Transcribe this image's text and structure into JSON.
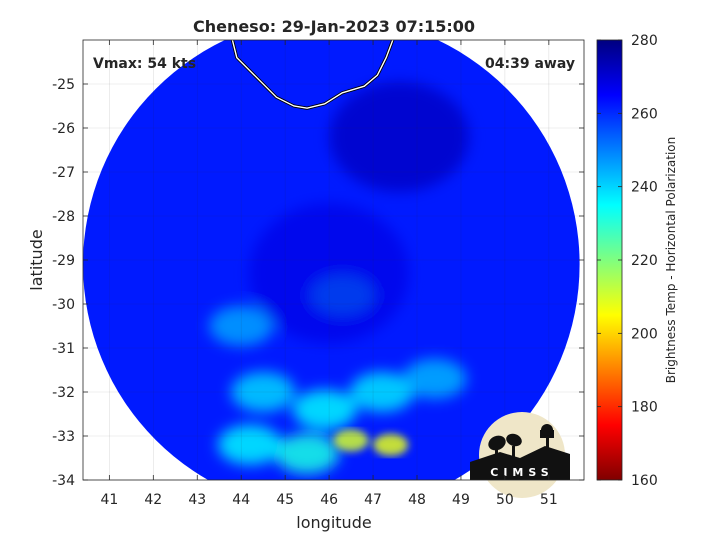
{
  "chart_data": {
    "type": "heatmap",
    "title": "Cheneso: 29-Jan-2023 07:15:00",
    "xlabel": "longitude",
    "ylabel": "latitude",
    "xlim": [
      40.4,
      51.8
    ],
    "ylim": [
      -34,
      -24
    ],
    "x_ticks": [
      41,
      42,
      43,
      44,
      45,
      46,
      47,
      48,
      49,
      50,
      51
    ],
    "y_ticks": [
      -25,
      -26,
      -27,
      -28,
      -29,
      -30,
      -31,
      -32,
      -33,
      -34
    ],
    "grid": true,
    "annotations": {
      "left": "Vmax: 54 kts",
      "right": "04:39 away"
    },
    "colorbar": {
      "label": "Brightness Temp - Horizontal Polarization",
      "range": [
        160,
        280
      ],
      "ticks": [
        280,
        260,
        240,
        220,
        200,
        180,
        160
      ],
      "colormap": "jet"
    },
    "scan_circle": {
      "center_lon": 46.05,
      "center_lat": -29.1,
      "radius_deg": 5.65
    },
    "features": [
      {
        "lon": 46.5,
        "lat": -33.1,
        "tb": 210
      },
      {
        "lon": 47.4,
        "lat": -33.2,
        "tb": 208
      },
      {
        "lon": 45.9,
        "lat": -32.4,
        "tb": 236
      },
      {
        "lon": 44.5,
        "lat": -32.0,
        "tb": 240
      },
      {
        "lon": 47.2,
        "lat": -32.0,
        "tb": 238
      },
      {
        "lon": 44.0,
        "lat": -30.5,
        "tb": 246
      },
      {
        "lon": 46.3,
        "lat": -29.8,
        "tb": 238
      },
      {
        "lon": 45.5,
        "lat": -33.4,
        "tb": 232
      },
      {
        "lon": 44.2,
        "lat": -33.2,
        "tb": 236
      },
      {
        "lon": 48.4,
        "lat": -31.7,
        "tb": 244
      }
    ],
    "coastline": [
      [
        43.8,
        -24.0
      ],
      [
        43.9,
        -24.4
      ],
      [
        44.3,
        -24.8
      ],
      [
        44.8,
        -25.3
      ],
      [
        45.2,
        -25.5
      ],
      [
        45.5,
        -25.55
      ],
      [
        45.9,
        -25.45
      ],
      [
        46.3,
        -25.2
      ],
      [
        46.8,
        -25.05
      ],
      [
        47.1,
        -24.8
      ],
      [
        47.3,
        -24.4
      ],
      [
        47.45,
        -24.0
      ]
    ]
  },
  "logo": {
    "text": "CIMSS",
    "colors": {
      "disk": "#efe6c8",
      "silhouette": "#111111"
    }
  }
}
